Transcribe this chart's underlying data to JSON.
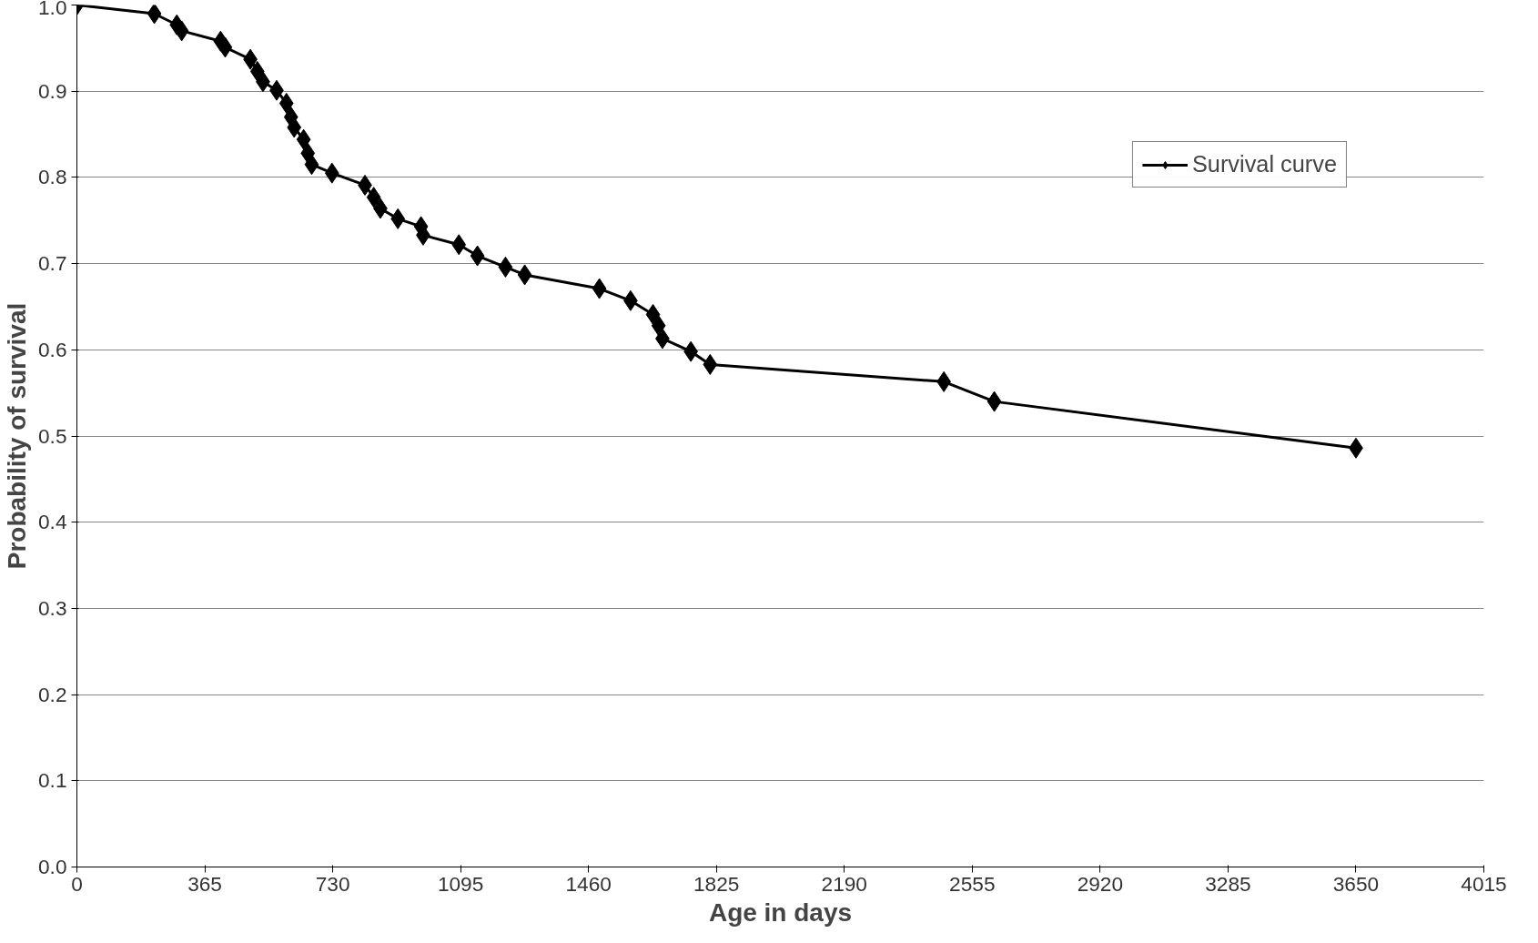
{
  "chart_data": {
    "type": "line",
    "xlabel": "Age in days",
    "ylabel": "Probability of survival",
    "x": [
      0,
      221,
      285,
      299,
      410,
      423,
      495,
      515,
      531,
      570,
      598,
      611,
      620,
      647,
      659,
      670,
      728,
      822,
      847,
      866,
      916,
      982,
      988,
      1090,
      1143,
      1223,
      1278,
      1491,
      1580,
      1644,
      1660,
      1671,
      1752,
      1807,
      2474,
      2618,
      3650
    ],
    "series": [
      {
        "name": "Survival curve",
        "color": "#000000",
        "values": [
          1.0,
          0.99,
          0.977,
          0.97,
          0.958,
          0.951,
          0.937,
          0.923,
          0.911,
          0.901,
          0.886,
          0.87,
          0.858,
          0.844,
          0.828,
          0.815,
          0.805,
          0.791,
          0.777,
          0.764,
          0.752,
          0.743,
          0.733,
          0.722,
          0.709,
          0.696,
          0.687,
          0.671,
          0.657,
          0.641,
          0.628,
          0.613,
          0.598,
          0.583,
          0.563,
          0.54,
          0.486
        ]
      }
    ],
    "xlim": [
      0,
      4015
    ],
    "xticks": [
      0,
      365,
      730,
      1095,
      1460,
      1825,
      2190,
      2555,
      2920,
      3285,
      3650,
      4015
    ],
    "ylim": [
      0,
      1.0
    ],
    "yticks": [
      {
        "value": 0,
        "label": "0.0"
      },
      0.1,
      0.2,
      0.3,
      0.4,
      0.5,
      0.6,
      0.7,
      0.8,
      0.9,
      {
        "value": 1.0,
        "label": "1.0"
      }
    ],
    "grid": "y",
    "legend": "top right",
    "marker": "diamond",
    "line_style": "solid"
  }
}
